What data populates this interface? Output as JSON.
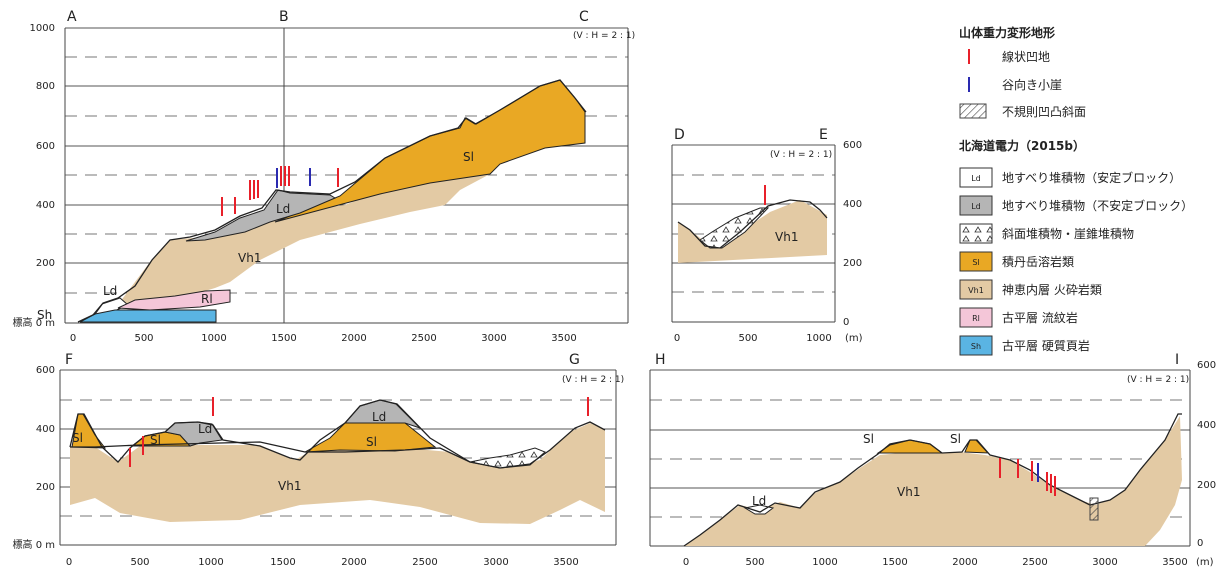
{
  "panels": {
    "abc": {
      "points": [
        "A",
        "B",
        "C"
      ],
      "ratio": "(V : H = 2 : 1)",
      "y_label_top": "1000",
      "y_ticks": [
        "800",
        "600",
        "400",
        "200"
      ],
      "y_label_zero": "標高 0 m",
      "x_ticks": [
        "0",
        "500",
        "1000",
        "1500",
        "2000",
        "2500",
        "3000",
        "3500"
      ],
      "units": [
        "Ld",
        "Sl",
        "Ld",
        "Vh1",
        "Rl",
        "Sh"
      ]
    },
    "de": {
      "points": [
        "D",
        "E"
      ],
      "ratio": "(V : H = 2 : 1)",
      "y_ticks": [
        "600",
        "400",
        "200",
        "0"
      ],
      "x_ticks": [
        "0",
        "500",
        "1000"
      ],
      "x_unit": "(m)",
      "units": [
        "Vh1"
      ]
    },
    "fg": {
      "points": [
        "F",
        "G"
      ],
      "ratio": "(V : H = 2 : 1)",
      "y_ticks": [
        "600",
        "400",
        "200"
      ],
      "y_label_zero": "標高 0 m",
      "x_ticks": [
        "0",
        "500",
        "1000",
        "1500",
        "2000",
        "2500",
        "3000",
        "3500"
      ],
      "units": [
        "Sl",
        "Sl",
        "Ld",
        "Ld",
        "Sl",
        "Vh1"
      ]
    },
    "hi": {
      "points": [
        "H",
        "I"
      ],
      "ratio": "(V : H = 2 : 1)",
      "y_ticks": [
        "600",
        "400",
        "200",
        "0"
      ],
      "x_ticks": [
        "0",
        "500",
        "1000",
        "1500",
        "2000",
        "2500",
        "3000",
        "3500"
      ],
      "x_unit": "(m)",
      "units": [
        "Sl",
        "Sl",
        "Ld",
        "Vh1"
      ]
    }
  },
  "legend": {
    "heading1": "山体重力変形地形",
    "heading2": "北海道電力（2015b）",
    "items1": [
      {
        "label": "線状凹地",
        "color": "#e8202a"
      },
      {
        "label": "谷向き小崖",
        "color": "#2a2ab0"
      },
      {
        "label": "不規則凹凸斜面",
        "color": "#777777"
      }
    ],
    "items2": [
      {
        "code": "Ld",
        "label": "地すべり堆積物（安定ブロック）",
        "color": "#ffffff"
      },
      {
        "code": "Ld",
        "label": "地すべり堆積物（不安定ブロック）",
        "color": "#b5b5b5"
      },
      {
        "code": "",
        "label": "斜面堆積物・崖錐堆積物",
        "color": "#ffffff"
      },
      {
        "code": "Sl",
        "label": "積丹岳溶岩類",
        "color": "#e9a824"
      },
      {
        "code": "Vh1",
        "label": "神恵内層 火砕岩類",
        "color": "#e3caa4"
      },
      {
        "code": "Rl",
        "label": "古平層 流紋岩",
        "color": "#f4c6d8"
      },
      {
        "code": "Sh",
        "label": "古平層 硬質頁岩",
        "color": "#5ab4e3"
      }
    ]
  }
}
